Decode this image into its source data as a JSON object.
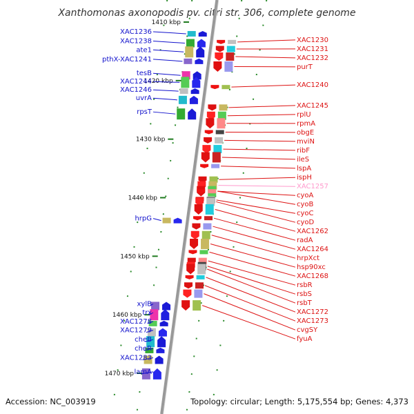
{
  "header": {
    "title": "Xanthomonas axonopodis pv. citri str. 306, complete genome"
  },
  "footer": {
    "accession": "Accession: NC_003919",
    "summary": "Topology: circular; Length: 5,175,554 bp; Genes: 4,373"
  },
  "colors": {
    "backbone": "#999999",
    "forward_label": "#1010cc",
    "reverse_label": "#dd1111",
    "tick": "#1e7a1e"
  },
  "kbp_marks": [
    {
      "label": "1410 kbp",
      "kbp": 1410
    },
    {
      "label": "1420 kbp",
      "kbp": 1420
    },
    {
      "label": "1430 kbp",
      "kbp": 1430
    },
    {
      "label": "1440 kbp",
      "kbp": 1440
    },
    {
      "label": "1450 kbp",
      "kbp": 1450
    },
    {
      "label": "1460 kbp",
      "kbp": 1460
    },
    {
      "label": "1470 kbp",
      "kbp": 1470
    }
  ],
  "left_genes": [
    {
      "name": "XAC1236",
      "kbp": 1412.0,
      "color": "#1111cc"
    },
    {
      "name": "XAC1238",
      "kbp": 1413.6,
      "color": "#1111cc"
    },
    {
      "name": "ate1",
      "kbp": 1415.1,
      "color": "#1111cc"
    },
    {
      "name": "pthX-XAC1241",
      "kbp": 1416.7,
      "color": "#1111cc"
    },
    {
      "name": "tesB",
      "kbp": 1419.1,
      "color": "#1111cc"
    },
    {
      "name": "XAC1244",
      "kbp": 1420.3,
      "color": "#1111cc"
    },
    {
      "name": "XAC1246",
      "kbp": 1421.8,
      "color": "#1111cc"
    },
    {
      "name": "uvrA",
      "kbp": 1423.3,
      "color": "#1111cc"
    },
    {
      "name": "rpsT",
      "kbp": 1425.7,
      "color": "#1111cc"
    },
    {
      "name": "hrpG",
      "kbp": 1443.9,
      "color": "#1111cc"
    },
    {
      "name": "xylB",
      "kbp": 1458.5,
      "color": "#1111cc"
    },
    {
      "name": "trx",
      "kbp": 1460.0,
      "color": "#1111cc"
    },
    {
      "name": "XAC1278",
      "kbp": 1461.5,
      "color": "#1111cc"
    },
    {
      "name": "XAC1279",
      "kbp": 1463.0,
      "color": "#1111cc"
    },
    {
      "name": "cheB",
      "kbp": 1464.6,
      "color": "#1111cc"
    },
    {
      "name": "cheR",
      "kbp": 1466.1,
      "color": "#1111cc"
    },
    {
      "name": "XAC1283",
      "kbp": 1467.7,
      "color": "#1111cc"
    },
    {
      "name": "lamA",
      "kbp": 1470.1,
      "color": "#1111cc"
    }
  ],
  "right_genes": [
    {
      "name": "XAC1230",
      "kbp": 1413.4,
      "color": "#dd1111"
    },
    {
      "name": "XAC1231",
      "kbp": 1414.6,
      "color": "#dd1111"
    },
    {
      "name": "XAC1232",
      "kbp": 1415.9,
      "color": "#dd1111"
    },
    {
      "name": "purT",
      "kbp": 1417.6,
      "color": "#dd1111"
    },
    {
      "name": "XAC1240",
      "kbp": 1421.1,
      "color": "#dd1111"
    },
    {
      "name": "XAC1245",
      "kbp": 1424.6,
      "color": "#dd1111"
    },
    {
      "name": "rplU",
      "kbp": 1426.0,
      "color": "#dd1111"
    },
    {
      "name": "rpmA",
      "kbp": 1427.3,
      "color": "#dd1111"
    },
    {
      "name": "obgE",
      "kbp": 1428.8,
      "color": "#dd1111"
    },
    {
      "name": "mviN",
      "kbp": 1430.2,
      "color": "#dd1111"
    },
    {
      "name": "ribF",
      "kbp": 1431.7,
      "color": "#dd1111"
    },
    {
      "name": "ileS",
      "kbp": 1433.1,
      "color": "#dd1111"
    },
    {
      "name": "lspA",
      "kbp": 1434.6,
      "color": "#dd1111"
    },
    {
      "name": "ispH",
      "kbp": 1436.9,
      "color": "#dd1111"
    },
    {
      "name": "XAC1257",
      "kbp": 1437.9,
      "color": "#ff99cc"
    },
    {
      "name": "cyoA",
      "kbp": 1438.9,
      "color": "#dd1111"
    },
    {
      "name": "cyoB",
      "kbp": 1438.9,
      "color": "#dd1111"
    },
    {
      "name": "cyoC",
      "kbp": 1440.4,
      "color": "#dd1111"
    },
    {
      "name": "cyoD",
      "kbp": 1440.7,
      "color": "#dd1111"
    },
    {
      "name": "XAC1262",
      "kbp": 1442.0,
      "color": "#dd1111"
    },
    {
      "name": "radA",
      "kbp": 1443.5,
      "color": "#dd1111"
    },
    {
      "name": "XAC1264",
      "kbp": 1444.9,
      "color": "#dd1111"
    },
    {
      "name": "hrpXct",
      "kbp": 1446.4,
      "color": "#dd1111"
    },
    {
      "name": "hsp90xc",
      "kbp": 1447.9,
      "color": "#dd1111"
    },
    {
      "name": "XAC1268",
      "kbp": 1449.3,
      "color": "#dd1111"
    },
    {
      "name": "rsbR",
      "kbp": 1450.8,
      "color": "#dd1111"
    },
    {
      "name": "rsbS",
      "kbp": 1451.7,
      "color": "#dd1111"
    },
    {
      "name": "rsbT",
      "kbp": 1452.2,
      "color": "#dd1111"
    },
    {
      "name": "XAC1272",
      "kbp": 1453.6,
      "color": "#dd1111"
    },
    {
      "name": "XAC1273",
      "kbp": 1455.0,
      "color": "#dd1111"
    },
    {
      "name": "cvgSY",
      "kbp": 1456.4,
      "color": "#dd1111"
    },
    {
      "name": "fyuA",
      "kbp": 1458.4,
      "color": "#dd1111"
    }
  ]
}
